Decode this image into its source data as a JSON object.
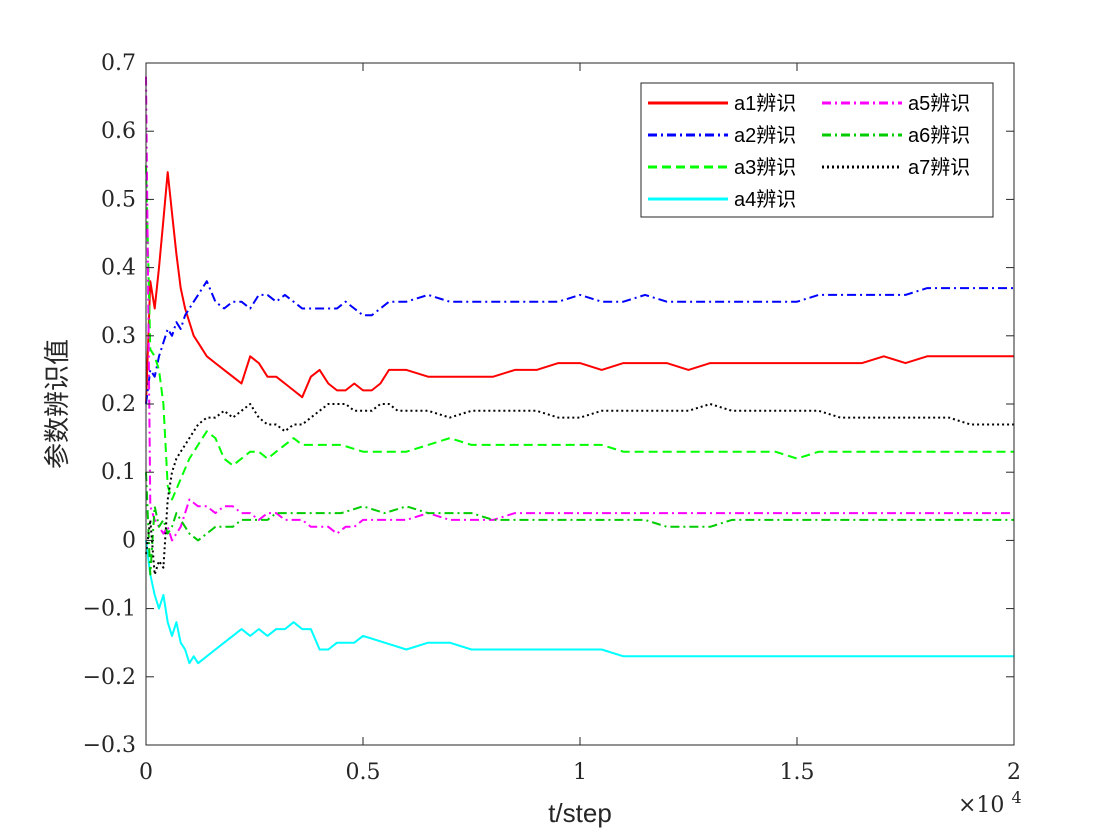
{
  "chart_data": {
    "type": "line",
    "xlabel": "t/step",
    "ylabel": "参数辨识值",
    "x_exponent_label": "×10^4",
    "x_exponent_base": "×10",
    "x_exponent_power": "4",
    "xlim": [
      0,
      20000
    ],
    "ylim": [
      -0.3,
      0.7
    ],
    "xticks": [
      0,
      5000,
      10000,
      15000,
      20000
    ],
    "xtick_labels": [
      "0",
      "0.5",
      "1",
      "1.5",
      "2"
    ],
    "yticks": [
      -0.3,
      -0.2,
      -0.1,
      0,
      0.1,
      0.2,
      0.3,
      0.4,
      0.5,
      0.6,
      0.7
    ],
    "ytick_labels": [
      "−0.3",
      "−0.2",
      "−0.1",
      "0",
      "0.1",
      "0.2",
      "0.3",
      "0.4",
      "0.5",
      "0.6",
      "0.7"
    ],
    "grid": false,
    "legend_position": "top-right",
    "legend_columns": 2,
    "series": [
      {
        "name": "a1辨识",
        "color": "#ff0000",
        "dash": "solid",
        "legend_col": 0,
        "legend_row": 0,
        "x": [
          0,
          100,
          200,
          300,
          400,
          500,
          600,
          700,
          800,
          900,
          1000,
          1100,
          1200,
          1400,
          1600,
          1800,
          2000,
          2200,
          2400,
          2600,
          2800,
          3000,
          3200,
          3400,
          3600,
          3800,
          4000,
          4200,
          4400,
          4600,
          4800,
          5000,
          5200,
          5400,
          5600,
          5800,
          6000,
          6500,
          7000,
          7500,
          8000,
          8500,
          9000,
          9500,
          10000,
          10500,
          11000,
          11500,
          12000,
          12500,
          13000,
          13500,
          14000,
          14500,
          15000,
          15500,
          16000,
          16500,
          17000,
          17500,
          18000,
          18500,
          19000,
          19500,
          20000
        ],
        "y": [
          0.2,
          0.38,
          0.34,
          0.4,
          0.47,
          0.54,
          0.48,
          0.42,
          0.37,
          0.34,
          0.32,
          0.3,
          0.29,
          0.27,
          0.26,
          0.25,
          0.24,
          0.23,
          0.27,
          0.26,
          0.24,
          0.24,
          0.23,
          0.22,
          0.21,
          0.24,
          0.25,
          0.23,
          0.22,
          0.22,
          0.23,
          0.22,
          0.22,
          0.23,
          0.25,
          0.25,
          0.25,
          0.24,
          0.24,
          0.24,
          0.24,
          0.25,
          0.25,
          0.26,
          0.26,
          0.25,
          0.26,
          0.26,
          0.26,
          0.25,
          0.26,
          0.26,
          0.26,
          0.26,
          0.26,
          0.26,
          0.26,
          0.26,
          0.27,
          0.26,
          0.27,
          0.27,
          0.27,
          0.27,
          0.27
        ]
      },
      {
        "name": "a2辨识",
        "color": "#0000ff",
        "dash": "dashdot",
        "legend_col": 0,
        "legend_row": 1,
        "x": [
          0,
          100,
          200,
          300,
          400,
          500,
          600,
          700,
          800,
          900,
          1000,
          1100,
          1200,
          1300,
          1400,
          1600,
          1800,
          2000,
          2200,
          2400,
          2600,
          2800,
          3000,
          3200,
          3400,
          3600,
          3800,
          4000,
          4200,
          4400,
          4600,
          4800,
          5000,
          5200,
          5400,
          5600,
          5800,
          6000,
          6500,
          7000,
          7500,
          8000,
          8500,
          9000,
          9500,
          10000,
          10500,
          11000,
          11500,
          12000,
          12500,
          13000,
          13500,
          14000,
          14500,
          15000,
          15500,
          16000,
          16500,
          17000,
          17500,
          18000,
          18500,
          19000,
          19500,
          20000
        ],
        "y": [
          0.2,
          0.25,
          0.24,
          0.27,
          0.29,
          0.31,
          0.3,
          0.32,
          0.31,
          0.33,
          0.34,
          0.35,
          0.36,
          0.37,
          0.38,
          0.35,
          0.34,
          0.35,
          0.35,
          0.34,
          0.36,
          0.36,
          0.35,
          0.36,
          0.35,
          0.34,
          0.34,
          0.34,
          0.34,
          0.34,
          0.35,
          0.34,
          0.33,
          0.33,
          0.34,
          0.35,
          0.35,
          0.35,
          0.36,
          0.35,
          0.35,
          0.35,
          0.35,
          0.35,
          0.35,
          0.36,
          0.35,
          0.35,
          0.36,
          0.35,
          0.35,
          0.35,
          0.35,
          0.35,
          0.35,
          0.35,
          0.36,
          0.36,
          0.36,
          0.36,
          0.36,
          0.37,
          0.37,
          0.37,
          0.37,
          0.37
        ]
      },
      {
        "name": "a3辨识",
        "color": "#00ff00",
        "dash": "dashed",
        "legend_col": 0,
        "legend_row": 2,
        "x": [
          0,
          100,
          200,
          300,
          400,
          500,
          600,
          800,
          1000,
          1200,
          1400,
          1600,
          1800,
          2000,
          2200,
          2400,
          2600,
          2800,
          3000,
          3200,
          3400,
          3600,
          3800,
          4000,
          4500,
          5000,
          5500,
          6000,
          6500,
          7000,
          7500,
          8000,
          8500,
          9000,
          9500,
          10000,
          10500,
          11000,
          11500,
          12000,
          12500,
          13000,
          13500,
          14000,
          14500,
          15000,
          15500,
          16000,
          16500,
          17000,
          17500,
          18000,
          18500,
          19000,
          19500,
          20000
        ],
        "y": [
          0.55,
          0.28,
          0.27,
          0.25,
          0.2,
          0.08,
          0.06,
          0.09,
          0.12,
          0.14,
          0.16,
          0.15,
          0.12,
          0.11,
          0.12,
          0.13,
          0.13,
          0.12,
          0.13,
          0.14,
          0.15,
          0.14,
          0.14,
          0.14,
          0.14,
          0.13,
          0.13,
          0.13,
          0.14,
          0.15,
          0.14,
          0.14,
          0.14,
          0.14,
          0.14,
          0.14,
          0.14,
          0.13,
          0.13,
          0.13,
          0.13,
          0.13,
          0.13,
          0.13,
          0.13,
          0.12,
          0.13,
          0.13,
          0.13,
          0.13,
          0.13,
          0.13,
          0.13,
          0.13,
          0.13,
          0.13
        ]
      },
      {
        "name": "a4辨识",
        "color": "#00ffff",
        "dash": "solid",
        "legend_col": 0,
        "legend_row": 3,
        "x": [
          0,
          100,
          200,
          300,
          400,
          500,
          600,
          700,
          800,
          900,
          1000,
          1100,
          1200,
          1400,
          1600,
          1800,
          2000,
          2200,
          2400,
          2600,
          2800,
          3000,
          3200,
          3400,
          3600,
          3800,
          4000,
          4200,
          4400,
          4600,
          4800,
          5000,
          5500,
          6000,
          6500,
          7000,
          7500,
          8000,
          8500,
          9000,
          9500,
          10000,
          10500,
          11000,
          11500,
          12000,
          12500,
          13000,
          13500,
          14000,
          14500,
          15000,
          15500,
          16000,
          16500,
          17000,
          17500,
          18000,
          18500,
          19000,
          19500,
          20000
        ],
        "y": [
          0.0,
          -0.05,
          -0.08,
          -0.1,
          -0.08,
          -0.12,
          -0.14,
          -0.12,
          -0.15,
          -0.16,
          -0.18,
          -0.17,
          -0.18,
          -0.17,
          -0.16,
          -0.15,
          -0.14,
          -0.13,
          -0.14,
          -0.13,
          -0.14,
          -0.13,
          -0.13,
          -0.12,
          -0.13,
          -0.13,
          -0.16,
          -0.16,
          -0.15,
          -0.15,
          -0.15,
          -0.14,
          -0.15,
          -0.16,
          -0.15,
          -0.15,
          -0.16,
          -0.16,
          -0.16,
          -0.16,
          -0.16,
          -0.16,
          -0.16,
          -0.17,
          -0.17,
          -0.17,
          -0.17,
          -0.17,
          -0.17,
          -0.17,
          -0.17,
          -0.17,
          -0.17,
          -0.17,
          -0.17,
          -0.17,
          -0.17,
          -0.17,
          -0.17,
          -0.17,
          -0.17,
          -0.17
        ]
      },
      {
        "name": "a5辨识",
        "color": "#ff00ff",
        "dash": "dashdot",
        "legend_col": 1,
        "legend_row": 0,
        "x": [
          0,
          100,
          200,
          300,
          400,
          500,
          600,
          700,
          800,
          900,
          1000,
          1200,
          1400,
          1600,
          1800,
          2000,
          2200,
          2400,
          2600,
          2800,
          3000,
          3200,
          3400,
          3600,
          3800,
          4000,
          4200,
          4400,
          4600,
          4800,
          5000,
          5500,
          6000,
          6500,
          7000,
          7500,
          8000,
          8500,
          9000,
          9500,
          10000,
          10500,
          11000,
          11500,
          12000,
          12500,
          13000,
          13500,
          14000,
          14500,
          15000,
          15500,
          16000,
          16500,
          17000,
          17500,
          18000,
          18500,
          19000,
          19500,
          20000
        ],
        "y": [
          0.68,
          0.05,
          0.03,
          0.02,
          0.01,
          0.02,
          0.0,
          0.01,
          0.02,
          0.04,
          0.06,
          0.05,
          0.05,
          0.04,
          0.05,
          0.05,
          0.04,
          0.04,
          0.03,
          0.04,
          0.04,
          0.03,
          0.03,
          0.03,
          0.02,
          0.02,
          0.02,
          0.01,
          0.02,
          0.02,
          0.03,
          0.03,
          0.03,
          0.04,
          0.03,
          0.03,
          0.03,
          0.04,
          0.04,
          0.04,
          0.04,
          0.04,
          0.04,
          0.04,
          0.04,
          0.04,
          0.04,
          0.04,
          0.04,
          0.04,
          0.04,
          0.04,
          0.04,
          0.04,
          0.04,
          0.04,
          0.04,
          0.04,
          0.04,
          0.04,
          0.04
        ]
      },
      {
        "name": "a6辨识",
        "color": "#00cc00",
        "dash": "dashdot",
        "legend_col": 1,
        "legend_row": 1,
        "x": [
          0,
          100,
          200,
          300,
          400,
          500,
          600,
          700,
          800,
          900,
          1000,
          1200,
          1400,
          1600,
          1800,
          2000,
          2200,
          2400,
          2600,
          2800,
          3000,
          3500,
          4000,
          4500,
          5000,
          5500,
          6000,
          6500,
          7000,
          7500,
          8000,
          8500,
          9000,
          9500,
          10000,
          10500,
          11000,
          11500,
          12000,
          12500,
          13000,
          13500,
          14000,
          14500,
          15000,
          15500,
          16000,
          16500,
          17000,
          17500,
          18000,
          18500,
          19000,
          19500,
          20000
        ],
        "y": [
          0.1,
          -0.05,
          0.05,
          0.02,
          0.03,
          0.01,
          0.02,
          0.04,
          0.03,
          0.02,
          0.01,
          0.0,
          0.01,
          0.02,
          0.02,
          0.02,
          0.03,
          0.03,
          0.03,
          0.03,
          0.04,
          0.04,
          0.04,
          0.04,
          0.05,
          0.04,
          0.05,
          0.04,
          0.04,
          0.04,
          0.03,
          0.03,
          0.03,
          0.03,
          0.03,
          0.03,
          0.03,
          0.03,
          0.02,
          0.02,
          0.02,
          0.03,
          0.03,
          0.03,
          0.03,
          0.03,
          0.03,
          0.03,
          0.03,
          0.03,
          0.03,
          0.03,
          0.03,
          0.03,
          0.03
        ]
      },
      {
        "name": "a7辨识",
        "color": "#000000",
        "dash": "dotted",
        "legend_col": 1,
        "legend_row": 2,
        "x": [
          0,
          100,
          200,
          300,
          400,
          500,
          600,
          700,
          800,
          900,
          1000,
          1200,
          1400,
          1600,
          1800,
          2000,
          2200,
          2400,
          2600,
          2800,
          3000,
          3200,
          3400,
          3600,
          3800,
          4000,
          4200,
          4400,
          4600,
          4800,
          5000,
          5200,
          5400,
          5600,
          5800,
          6000,
          6500,
          7000,
          7500,
          8000,
          8500,
          9000,
          9500,
          10000,
          10500,
          11000,
          11500,
          12000,
          12500,
          13000,
          13500,
          14000,
          14500,
          15000,
          15500,
          16000,
          16500,
          17000,
          17500,
          18000,
          18500,
          19000,
          19500,
          20000
        ],
        "y": [
          -0.02,
          0.03,
          -0.05,
          -0.03,
          -0.04,
          0.06,
          0.1,
          0.12,
          0.13,
          0.14,
          0.15,
          0.17,
          0.18,
          0.18,
          0.19,
          0.18,
          0.19,
          0.2,
          0.18,
          0.17,
          0.17,
          0.16,
          0.17,
          0.17,
          0.18,
          0.19,
          0.2,
          0.2,
          0.2,
          0.19,
          0.19,
          0.19,
          0.2,
          0.2,
          0.19,
          0.19,
          0.19,
          0.18,
          0.19,
          0.19,
          0.19,
          0.19,
          0.18,
          0.18,
          0.19,
          0.19,
          0.19,
          0.19,
          0.19,
          0.2,
          0.19,
          0.19,
          0.19,
          0.19,
          0.19,
          0.18,
          0.18,
          0.18,
          0.18,
          0.18,
          0.18,
          0.17,
          0.17,
          0.17
        ]
      }
    ]
  }
}
